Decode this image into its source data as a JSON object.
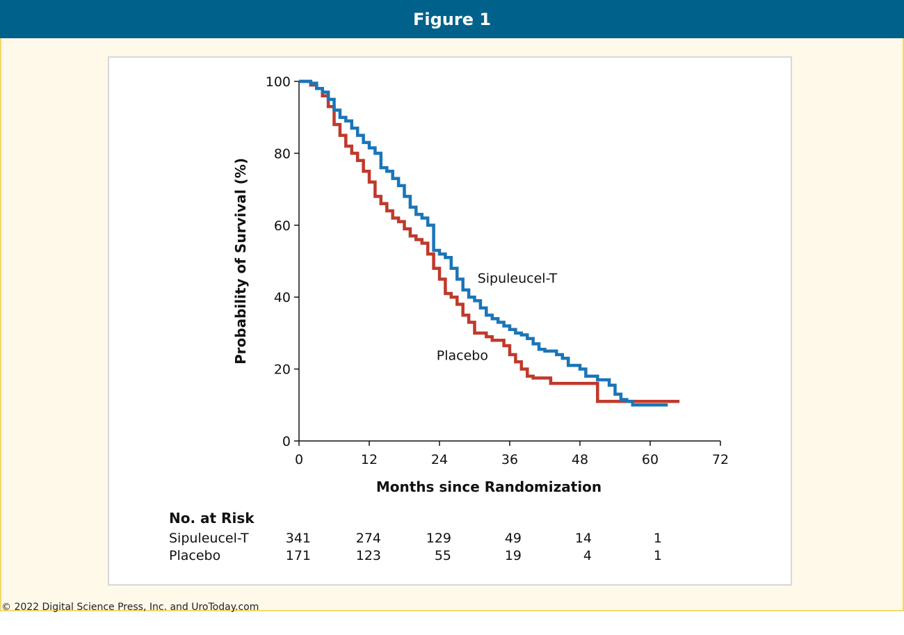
{
  "header": {
    "title": "Figure 1"
  },
  "footer": {
    "copyright": "© 2022 Digital Science Press, Inc. and UroToday.com"
  },
  "colors": {
    "header_bg": "#00628b",
    "frame_bg": "#fff9ea",
    "frame_border": "#f2d96b",
    "sipuleucel": "#1a75b8",
    "placebo": "#c0392b"
  },
  "chart_data": {
    "type": "line",
    "step": true,
    "title": "",
    "xlabel": "Months since Randomization",
    "ylabel": "Probability of Survival (%)",
    "xlim": [
      0,
      72
    ],
    "ylim": [
      0,
      100
    ],
    "xticks": [
      0,
      12,
      24,
      36,
      48,
      60,
      72
    ],
    "yticks": [
      0,
      20,
      40,
      60,
      80,
      100
    ],
    "grid": false,
    "series": [
      {
        "name": "Sipuleucel-T",
        "color": "#1a75b8",
        "points": [
          [
            0,
            100
          ],
          [
            1,
            100
          ],
          [
            2,
            99.5
          ],
          [
            3,
            98
          ],
          [
            4,
            97
          ],
          [
            5,
            95
          ],
          [
            6,
            92
          ],
          [
            7,
            90
          ],
          [
            8,
            89
          ],
          [
            9,
            87
          ],
          [
            10,
            85
          ],
          [
            11,
            83
          ],
          [
            12,
            81.5
          ],
          [
            13,
            80
          ],
          [
            14,
            76
          ],
          [
            15,
            75
          ],
          [
            16,
            73
          ],
          [
            17,
            71
          ],
          [
            18,
            68
          ],
          [
            19,
            65
          ],
          [
            20,
            63
          ],
          [
            21,
            62
          ],
          [
            22,
            60
          ],
          [
            23,
            53
          ],
          [
            24,
            52
          ],
          [
            25,
            51
          ],
          [
            26,
            48
          ],
          [
            27,
            45
          ],
          [
            28,
            42
          ],
          [
            29,
            40
          ],
          [
            30,
            39
          ],
          [
            31,
            37
          ],
          [
            32,
            35
          ],
          [
            33,
            34
          ],
          [
            34,
            33
          ],
          [
            35,
            32
          ],
          [
            36,
            31
          ],
          [
            37,
            30
          ],
          [
            38,
            29.5
          ],
          [
            39,
            28.5
          ],
          [
            40,
            27
          ],
          [
            41,
            25.5
          ],
          [
            42,
            25
          ],
          [
            44,
            24
          ],
          [
            45,
            23
          ],
          [
            46,
            21
          ],
          [
            48,
            20
          ],
          [
            49,
            18
          ],
          [
            51,
            17
          ],
          [
            53,
            15.5
          ],
          [
            54,
            13
          ],
          [
            55,
            11.5
          ],
          [
            56,
            11
          ],
          [
            57,
            10
          ],
          [
            63,
            10
          ]
        ]
      },
      {
        "name": "Placebo",
        "color": "#c0392b",
        "points": [
          [
            0,
            100
          ],
          [
            1,
            100
          ],
          [
            2,
            99
          ],
          [
            3,
            98
          ],
          [
            4,
            96
          ],
          [
            5,
            93
          ],
          [
            6,
            88
          ],
          [
            7,
            85
          ],
          [
            8,
            82
          ],
          [
            9,
            80
          ],
          [
            10,
            78
          ],
          [
            11,
            75
          ],
          [
            12,
            72
          ],
          [
            13,
            68
          ],
          [
            14,
            66
          ],
          [
            15,
            64
          ],
          [
            16,
            62
          ],
          [
            17,
            61
          ],
          [
            18,
            59
          ],
          [
            19,
            57
          ],
          [
            20,
            56
          ],
          [
            21,
            55
          ],
          [
            22,
            52
          ],
          [
            23,
            48
          ],
          [
            24,
            45
          ],
          [
            25,
            41
          ],
          [
            26,
            40
          ],
          [
            27,
            38
          ],
          [
            28,
            35
          ],
          [
            29,
            33
          ],
          [
            30,
            30
          ],
          [
            32,
            29
          ],
          [
            33,
            28
          ],
          [
            35,
            26.5
          ],
          [
            36,
            24
          ],
          [
            37,
            22
          ],
          [
            38,
            20
          ],
          [
            39,
            18
          ],
          [
            40,
            17.5
          ],
          [
            43,
            16
          ],
          [
            51,
            16
          ],
          [
            51,
            11
          ],
          [
            65,
            11
          ]
        ]
      }
    ],
    "annotations": [
      {
        "text": "Sipuleucel-T",
        "x": 30.5,
        "y": 44
      },
      {
        "text": "Placebo",
        "x": 23.5,
        "y": 22.5
      }
    ],
    "risk_table": {
      "title": "No. at Risk",
      "times": [
        0,
        12,
        24,
        36,
        48,
        60
      ],
      "rows": [
        {
          "label": "Sipuleucel-T",
          "values": [
            "341",
            "274",
            "129",
            "49",
            "14",
            "1"
          ]
        },
        {
          "label": "Placebo",
          "values": [
            "171",
            "123",
            "55",
            "19",
            "4",
            "1"
          ]
        }
      ]
    }
  }
}
